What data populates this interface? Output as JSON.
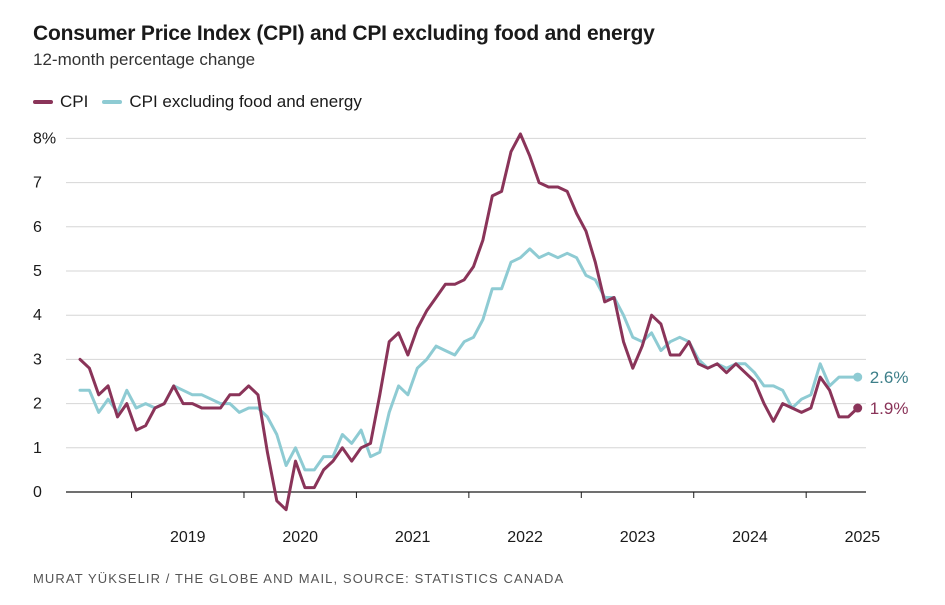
{
  "header": {
    "title": "Consumer Price Index (CPI) and CPI excluding food and energy",
    "subtitle": "12-month percentage change"
  },
  "footer": {
    "source": "MURAT YÜKSELIR / THE GLOBE AND MAIL, SOURCE: STATISTICS CANADA"
  },
  "colors": {
    "cpi": "#8a3459",
    "core": "#8ecbd3",
    "grid": "#d6d6d6",
    "axis": "#1a1a1a",
    "core_label": "#3d7f89"
  },
  "chart_data": {
    "type": "line",
    "title": "Consumer Price Index (CPI) and CPI excluding food and energy",
    "subtitle": "12-month percentage change",
    "xlabel": "",
    "ylabel": "",
    "x_start": "2018-07",
    "x_frequency": "monthly",
    "x_tick_labels": [
      "2019",
      "2020",
      "2021",
      "2022",
      "2023",
      "2024",
      "2025"
    ],
    "y_tick_labels": [
      "0",
      "1",
      "2",
      "3",
      "4",
      "5",
      "6",
      "7",
      "8%"
    ],
    "ylim": [
      -0.4,
      8.2
    ],
    "grid": true,
    "legend_position": "top-left",
    "series": [
      {
        "name": "CPI",
        "end_label": "1.9%",
        "values": [
          3.0,
          2.8,
          2.2,
          2.4,
          1.7,
          2.0,
          1.4,
          1.5,
          1.9,
          2.0,
          2.4,
          2.0,
          2.0,
          1.9,
          1.9,
          1.9,
          2.2,
          2.2,
          2.4,
          2.2,
          0.9,
          -0.2,
          -0.4,
          0.7,
          0.1,
          0.1,
          0.5,
          0.7,
          1.0,
          0.7,
          1.0,
          1.1,
          2.2,
          3.4,
          3.6,
          3.1,
          3.7,
          4.1,
          4.4,
          4.7,
          4.7,
          4.8,
          5.1,
          5.7,
          6.7,
          6.8,
          7.7,
          8.1,
          7.6,
          7.0,
          6.9,
          6.9,
          6.8,
          6.3,
          5.9,
          5.2,
          4.3,
          4.4,
          3.4,
          2.8,
          3.3,
          4.0,
          3.8,
          3.1,
          3.1,
          3.4,
          2.9,
          2.8,
          2.9,
          2.7,
          2.9,
          2.7,
          2.5,
          2.0,
          1.6,
          2.0,
          1.9,
          1.8,
          1.9,
          2.6,
          2.3,
          1.7,
          1.7,
          1.9
        ]
      },
      {
        "name": "CPI excluding food and energy",
        "end_label": "2.6%",
        "values": [
          2.3,
          2.3,
          1.8,
          2.1,
          1.8,
          2.3,
          1.9,
          2.0,
          1.9,
          2.0,
          2.4,
          2.3,
          2.2,
          2.2,
          2.1,
          2.0,
          2.0,
          1.8,
          1.9,
          1.9,
          1.7,
          1.3,
          0.6,
          1.0,
          0.5,
          0.5,
          0.8,
          0.8,
          1.3,
          1.1,
          1.4,
          0.8,
          0.9,
          1.8,
          2.4,
          2.2,
          2.8,
          3.0,
          3.3,
          3.2,
          3.1,
          3.4,
          3.5,
          3.9,
          4.6,
          4.6,
          5.2,
          5.3,
          5.5,
          5.3,
          5.4,
          5.3,
          5.4,
          5.3,
          4.9,
          4.8,
          4.4,
          4.4,
          4.0,
          3.5,
          3.4,
          3.6,
          3.2,
          3.4,
          3.5,
          3.4,
          3.0,
          2.8,
          2.9,
          2.8,
          2.9,
          2.9,
          2.7,
          2.4,
          2.4,
          2.3,
          1.9,
          2.1,
          2.2,
          2.9,
          2.4,
          2.6,
          2.6,
          2.6
        ]
      }
    ]
  }
}
